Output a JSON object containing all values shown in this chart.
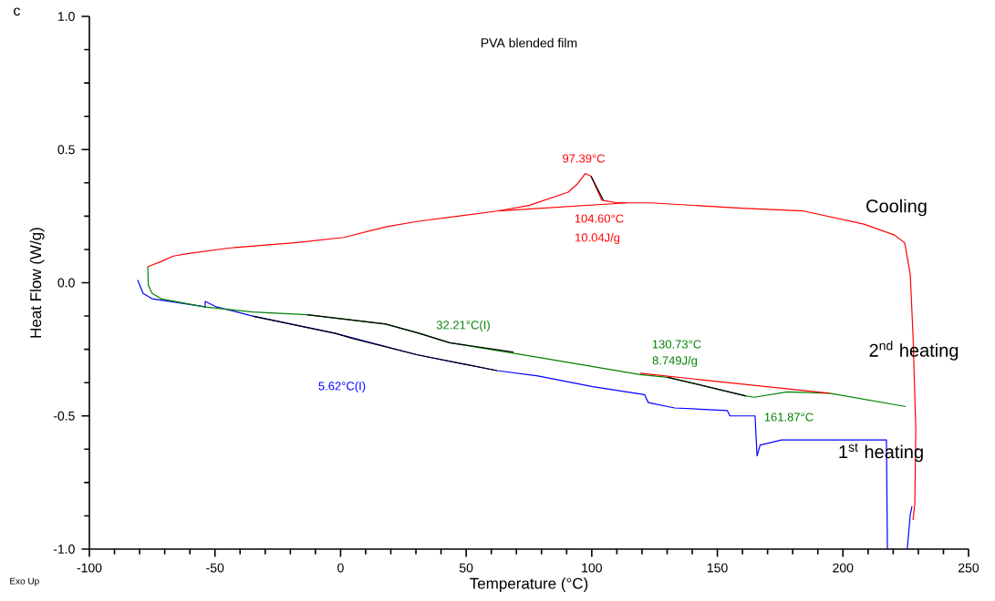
{
  "chart_data": {
    "type": "line",
    "title": "PVA blended film",
    "xlabel": "Temperature (°C)",
    "ylabel": "Heat Flow (W/g)",
    "xlim": [
      -100,
      250
    ],
    "ylim": [
      -1.0,
      1.0
    ],
    "xticks": [
      -100,
      -50,
      0,
      50,
      100,
      150,
      200,
      250
    ],
    "yticks": [
      {
        "value": -1.0,
        "label": "-1.0"
      },
      {
        "value": -0.5,
        "label": "-0.5"
      },
      {
        "value": 0,
        "label": "0.0"
      },
      {
        "value": 0.5,
        "label": "0.5"
      },
      {
        "value": 1.0,
        "label": "1.0"
      }
    ],
    "series": [
      {
        "color": "#0000ff",
        "x": [
          -80.8,
          -78.6,
          -75,
          -53.9,
          -53.9,
          -49.6,
          -35,
          -2,
          30.3,
          62.3,
          78.6,
          100.4,
          121,
          122.5,
          133,
          154,
          155,
          165,
          165.8,
          167,
          175.6,
          217.3,
          217.7,
          null,
          225.6,
          226.8,
          227.5
        ],
        "values": [
          0.01,
          -0.04,
          -0.06,
          -0.09,
          -0.07,
          -0.09,
          -0.125,
          -0.19,
          -0.27,
          -0.33,
          -0.35,
          -0.39,
          -0.42,
          -0.45,
          -0.47,
          -0.48,
          -0.5,
          -0.5,
          -0.65,
          -0.61,
          -0.59,
          -0.59,
          -1.0,
          null,
          -1.0,
          -0.87,
          -0.84
        ]
      },
      {
        "color": "#008000",
        "x": [
          -76.8,
          -76.5,
          -75,
          -71.4,
          -54.6,
          -35,
          -13.3,
          18,
          31.4,
          43.4,
          78.6,
          119.3,
          130.2,
          161.4,
          164.7,
          177.8,
          194.8,
          225
        ],
        "values": [
          0.06,
          -0.01,
          -0.04,
          -0.06,
          -0.09,
          -0.11,
          -0.12,
          -0.155,
          -0.19,
          -0.225,
          -0.28,
          -0.345,
          -0.355,
          -0.425,
          -0.43,
          -0.41,
          -0.415,
          -0.465
        ]
      },
      {
        "color": "#ff0000",
        "x": [
          227.9,
          228.6,
          229,
          227.9,
          226.8,
          224.6,
          220.3,
          208.3,
          183.9,
          159.6,
          123.3,
          110.2,
          104,
          99.7,
          97.4,
          94.2,
          90.6,
          75,
          63,
          30.3,
          18,
          1.3,
          -18.3,
          -44.8,
          -60.5,
          -66.6,
          -71.4,
          -76.8
        ],
        "values": [
          -0.89,
          -0.83,
          -0.55,
          -0.2,
          0.03,
          0.15,
          0.18,
          0.22,
          0.27,
          0.28,
          0.3,
          0.3,
          0.31,
          0.4,
          0.41,
          0.37,
          0.34,
          0.29,
          0.27,
          0.23,
          0.21,
          0.17,
          0.15,
          0.13,
          0.11,
          0.1,
          0.08,
          0.06
        ]
      },
      {
        "color": "#ff0000",
        "x": [
          63,
          114
        ],
        "values": [
          0.27,
          0.3
        ]
      },
      {
        "color": "#ff0000",
        "x": [
          119.3,
          194.8
        ],
        "values": [
          -0.34,
          -0.415
        ]
      },
      {
        "color": "#000000",
        "x": [
          -35,
          -2,
          5,
          30.3,
          62.3
        ],
        "values": [
          -0.125,
          -0.19,
          -0.21,
          -0.27,
          -0.33
        ]
      },
      {
        "color": "#000000",
        "x": [
          -13.3,
          18,
          31.4,
          43.4,
          68.8
        ],
        "values": [
          -0.12,
          -0.155,
          -0.19,
          -0.225,
          -0.26
        ]
      },
      {
        "color": "#000000",
        "x": [
          99.7,
          104.6
        ],
        "values": [
          0.4,
          0.31
        ]
      },
      {
        "color": "#000000",
        "x": [
          130.2,
          161.4
        ],
        "values": [
          -0.355,
          -0.425
        ]
      }
    ],
    "annotations": [
      "c",
      "Exo Up",
      "Cooling",
      "2$^{nd}$ heating",
      "1$^{st}$ heating",
      "97.39°C",
      "104.60°C",
      "10.04J/g",
      "32.21°C(I)",
      "5.62°C(I)",
      "130.73°C",
      "8.749J/g",
      "161.87°C"
    ]
  }
}
